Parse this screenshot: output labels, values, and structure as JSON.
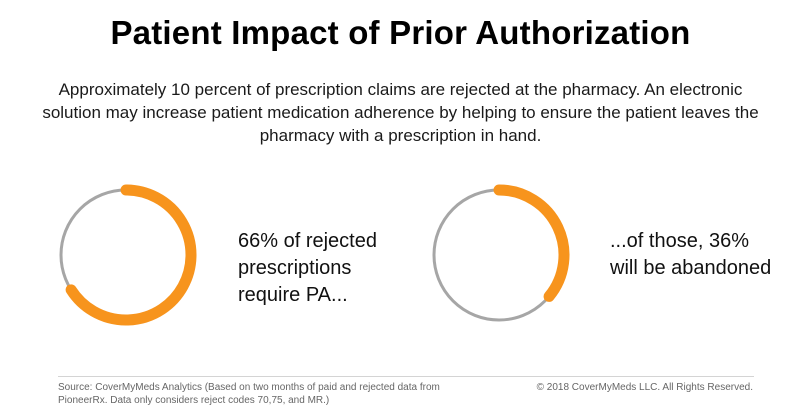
{
  "title": "Patient Impact of Prior Authorization",
  "subtitle": "Approximately 10 percent of prescription claims are rejected at the pharmacy. An electronic solution may increase patient medication adherence by helping to ensure the patient leaves the pharmacy with a prescription in hand.",
  "chart_data": [
    {
      "type": "pie",
      "style": "donut",
      "value_percent": 66,
      "caption": "66% of rejected prescriptions require PA...",
      "colors": {
        "value": "#f7941d",
        "track": "#a6a6a6"
      }
    },
    {
      "type": "pie",
      "style": "donut",
      "value_percent": 36,
      "caption": "...of those, 36% will be abandoned",
      "colors": {
        "value": "#f7941d",
        "track": "#a6a6a6"
      }
    }
  ],
  "footer": {
    "source": "Source: CoverMyMeds Analytics (Based on two months of paid and rejected data from PioneerRx. Data only considers reject codes 70,75, and MR.)",
    "copyright": "© 2018 CoverMyMeds LLC. All Rights Reserved."
  }
}
